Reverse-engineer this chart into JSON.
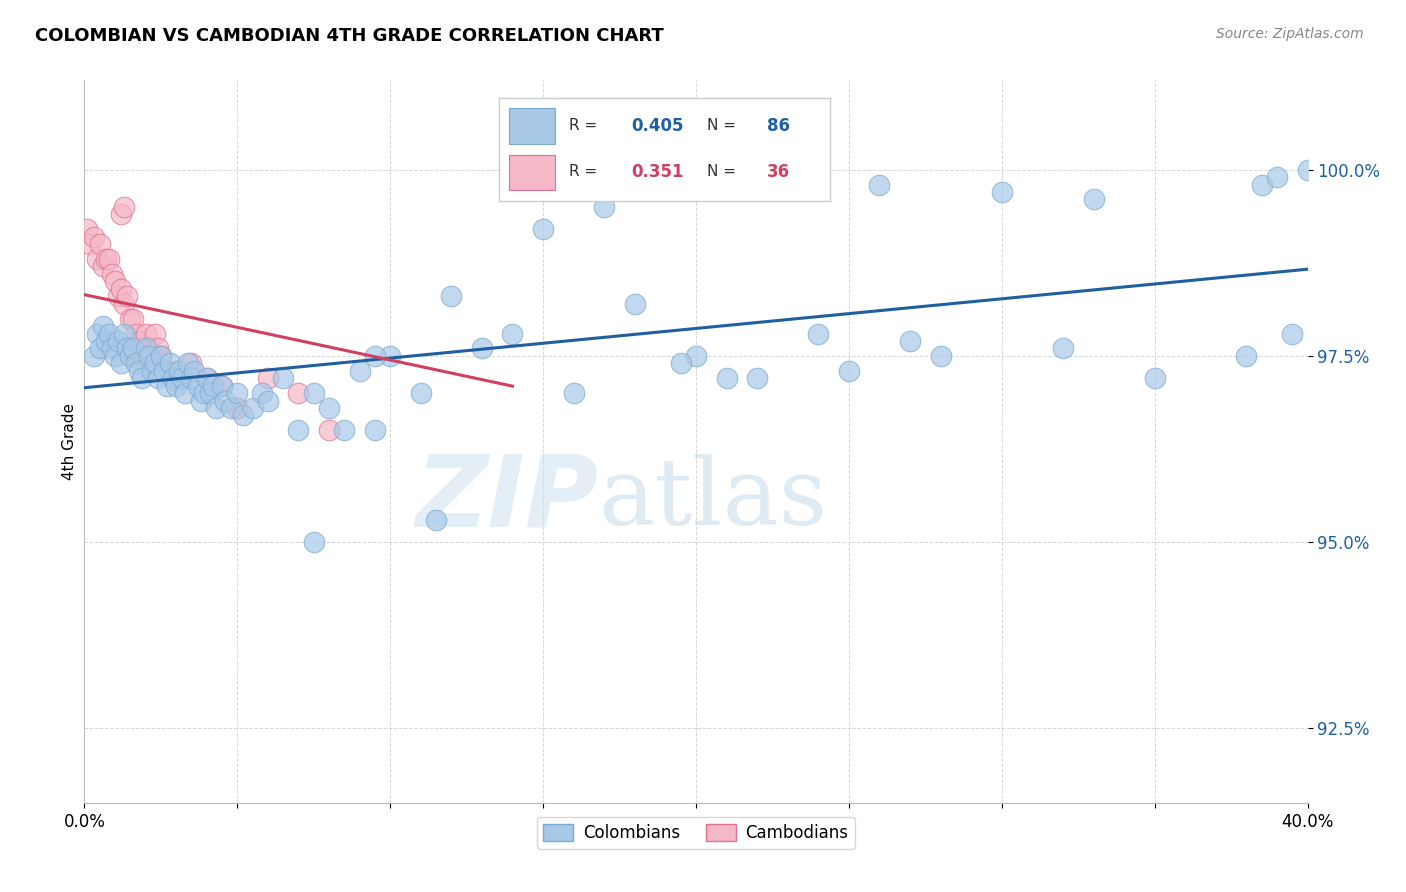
{
  "title": "COLOMBIAN VS CAMBODIAN 4TH GRADE CORRELATION CHART",
  "source": "Source: ZipAtlas.com",
  "ylabel": "4th Grade",
  "ytick_labels": [
    "92.5%",
    "95.0%",
    "97.5%",
    "100.0%"
  ],
  "ytick_values": [
    92.5,
    95.0,
    97.5,
    100.0
  ],
  "xlim": [
    0.0,
    40.0
  ],
  "ylim": [
    91.5,
    101.2
  ],
  "legend_blue_r": "0.405",
  "legend_blue_n": "86",
  "legend_pink_r": "0.351",
  "legend_pink_n": "36",
  "blue_color": "#a8c8e8",
  "blue_edge_color": "#7aaacf",
  "pink_color": "#f4b8c8",
  "pink_edge_color": "#e07090",
  "blue_line_color": "#2060a0",
  "pink_line_color": "#d04060",
  "watermark_zip": "ZIP",
  "watermark_atlas": "atlas",
  "colombians_label": "Colombians",
  "cambodians_label": "Cambodians",
  "blue_scatter_x": [
    0.3,
    0.4,
    0.5,
    0.6,
    0.7,
    0.8,
    0.9,
    1.0,
    1.1,
    1.2,
    1.3,
    1.4,
    1.5,
    1.6,
    1.7,
    1.8,
    1.9,
    2.0,
    2.1,
    2.2,
    2.3,
    2.4,
    2.5,
    2.6,
    2.7,
    2.8,
    2.9,
    3.0,
    3.1,
    3.2,
    3.3,
    3.4,
    3.5,
    3.6,
    3.7,
    3.8,
    3.9,
    4.0,
    4.1,
    4.2,
    4.3,
    4.5,
    4.6,
    4.8,
    5.0,
    5.2,
    5.5,
    5.8,
    6.0,
    6.5,
    7.0,
    7.5,
    8.0,
    8.5,
    9.0,
    9.5,
    10.0,
    11.0,
    12.0,
    13.0,
    14.0,
    15.0,
    16.0,
    17.0,
    18.0,
    20.0,
    22.0,
    24.0,
    25.0,
    26.0,
    28.0,
    30.0,
    32.0,
    33.0,
    35.0,
    38.0,
    38.5,
    39.0,
    39.5,
    40.0,
    7.5,
    9.5,
    11.5,
    19.5,
    21.0,
    27.0
  ],
  "blue_scatter_y": [
    97.5,
    97.8,
    97.6,
    97.9,
    97.7,
    97.8,
    97.6,
    97.5,
    97.7,
    97.4,
    97.8,
    97.6,
    97.5,
    97.6,
    97.4,
    97.3,
    97.2,
    97.6,
    97.5,
    97.3,
    97.4,
    97.2,
    97.5,
    97.3,
    97.1,
    97.4,
    97.2,
    97.1,
    97.3,
    97.2,
    97.0,
    97.4,
    97.2,
    97.3,
    97.1,
    96.9,
    97.0,
    97.2,
    97.0,
    97.1,
    96.8,
    97.1,
    96.9,
    96.8,
    97.0,
    96.7,
    96.8,
    97.0,
    96.9,
    97.2,
    96.5,
    97.0,
    96.8,
    96.5,
    97.3,
    96.5,
    97.5,
    97.0,
    98.3,
    97.6,
    97.8,
    99.2,
    97.0,
    99.5,
    98.2,
    97.5,
    97.2,
    97.8,
    97.3,
    99.8,
    97.5,
    99.7,
    97.6,
    99.6,
    97.2,
    97.5,
    99.8,
    99.9,
    97.8,
    100.0,
    95.0,
    97.5,
    95.3,
    97.4,
    97.2,
    97.7
  ],
  "pink_scatter_x": [
    0.1,
    0.2,
    0.3,
    0.4,
    0.5,
    0.6,
    0.7,
    0.8,
    0.9,
    1.0,
    1.1,
    1.2,
    1.3,
    1.4,
    1.5,
    1.6,
    1.7,
    1.8,
    1.9,
    2.0,
    2.1,
    2.2,
    2.3,
    2.4,
    2.5,
    3.0,
    3.5,
    4.0,
    4.5,
    5.0,
    6.0,
    7.0,
    8.0,
    14.0,
    1.2,
    1.3
  ],
  "pink_scatter_y": [
    99.2,
    99.0,
    99.1,
    98.8,
    99.0,
    98.7,
    98.8,
    98.8,
    98.6,
    98.5,
    98.3,
    98.4,
    98.2,
    98.3,
    98.0,
    98.0,
    97.8,
    97.7,
    97.5,
    97.8,
    97.6,
    97.5,
    97.8,
    97.6,
    97.5,
    97.3,
    97.4,
    97.2,
    97.1,
    96.8,
    97.2,
    97.0,
    96.5,
    99.8,
    99.4,
    99.5
  ]
}
